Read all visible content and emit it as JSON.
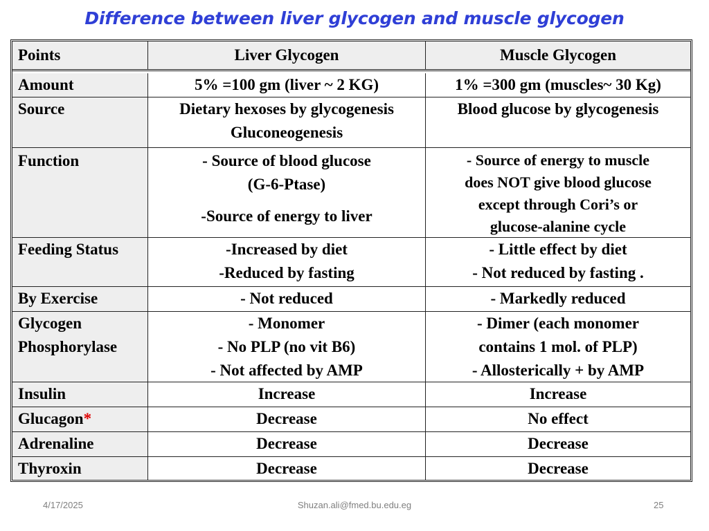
{
  "title": "Difference between liver glycogen and muscle glycogen",
  "headers": [
    "Points",
    "Liver Glycogen",
    "Muscle Glycogen"
  ],
  "rows": {
    "amount": {
      "point": "Amount",
      "liver": [
        "5% =100 gm (liver ~ 2 KG)"
      ],
      "muscle": [
        "1% =300 gm (muscles~ 30 Kg)"
      ]
    },
    "source": {
      "point": "Source",
      "liver": [
        "Dietary hexoses by glycogenesis",
        "Gluconeogenesis"
      ],
      "muscle": [
        "Blood glucose by glycogenesis"
      ]
    },
    "function": {
      "point": "Function",
      "liver": [
        "- Source of blood glucose",
        "(G-6-Ptase)",
        "-Source of energy to liver"
      ],
      "muscle": [
        "- Source of energy to muscle",
        "does NOT give blood glucose",
        "except through Cori’s or",
        "glucose-alanine cycle"
      ]
    },
    "feeding": {
      "point": "Feeding Status",
      "liver": [
        "-Increased by diet",
        "-Reduced by fasting"
      ],
      "muscle": [
        "- Little effect by diet",
        "- Not reduced by fasting ."
      ]
    },
    "exercise": {
      "point": "By Exercise",
      "liver": [
        "- Not reduced"
      ],
      "muscle": [
        "- Markedly reduced"
      ]
    },
    "phosphorylase": {
      "point": [
        "Glycogen",
        "Phosphorylase"
      ],
      "liver": [
        "- Monomer",
        "- No PLP (no vit B6)",
        "- Not affected by AMP"
      ],
      "muscle": [
        "- Dimer (each monomer",
        "contains 1 mol. of PLP)",
        "- Allosterically + by AMP"
      ]
    },
    "insulin": {
      "point": "Insulin",
      "liver": [
        "Increase"
      ],
      "muscle": [
        "Increase"
      ]
    },
    "glucagon": {
      "point": "Glucagon",
      "marker": "*",
      "liver": [
        "Decrease"
      ],
      "muscle": [
        "No effect"
      ]
    },
    "adrenaline": {
      "point": "Adrenaline",
      "liver": [
        "Decrease"
      ],
      "muscle": [
        "Decrease"
      ]
    },
    "thyroxin": {
      "point": "Thyroxin",
      "liver": [
        "Decrease"
      ],
      "muscle": [
        "Decrease"
      ]
    }
  },
  "footer": {
    "date": "4/17/2025",
    "email": "Shuzan.ali@fmed.bu.edu.eg",
    "page": "25"
  },
  "colors": {
    "title": "#2f3fd6",
    "marker": "#e00000",
    "label_bg": "#eeeeee"
  }
}
